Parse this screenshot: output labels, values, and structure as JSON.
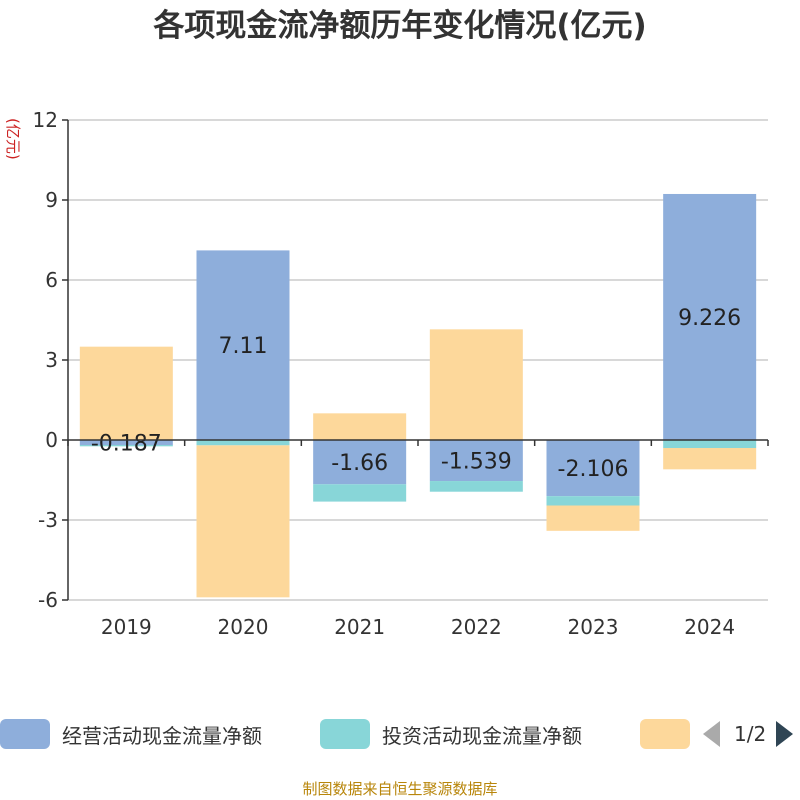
{
  "title": "各项现金流净额历年变化情况(亿元)",
  "unit_label": "(亿元)",
  "source": "制图数据来自恒生聚源数据库",
  "colors": {
    "operating": "#8eaedb",
    "investing": "#88d6d8",
    "financing": "#fdd89b",
    "axis": "#333333",
    "grid": "#cccccc"
  },
  "legend": {
    "items": [
      {
        "label": "经营活动现金流量净额",
        "color": "#8eaedb"
      },
      {
        "label": "投资活动现金流量净额",
        "color": "#88d6d8"
      },
      {
        "label": "",
        "color": "#fdd89b"
      }
    ],
    "page": "1/2"
  },
  "chart_data": {
    "type": "bar",
    "stacked": true,
    "categories": [
      "2019",
      "2020",
      "2021",
      "2022",
      "2023",
      "2024"
    ],
    "ylim": [
      -6,
      12
    ],
    "yticks": [
      -6,
      -3,
      0,
      3,
      6,
      9,
      12
    ],
    "series": [
      {
        "name": "经营活动现金流量净额",
        "color": "#8eaedb",
        "values": [
          -0.187,
          7.11,
          -1.66,
          -1.539,
          -2.106,
          9.226
        ],
        "labels": [
          "-0.187",
          "7.11",
          "-1.66",
          "-1.539",
          "-2.106",
          "9.226"
        ]
      },
      {
        "name": "投资活动现金流量净额",
        "color": "#88d6d8",
        "values": [
          -0.05,
          -0.2,
          -0.65,
          -0.4,
          -0.35,
          -0.3
        ]
      },
      {
        "name": "",
        "color": "#fdd89b",
        "values": [
          3.5,
          -5.7,
          1.0,
          4.15,
          -0.95,
          -0.8
        ]
      }
    ]
  }
}
